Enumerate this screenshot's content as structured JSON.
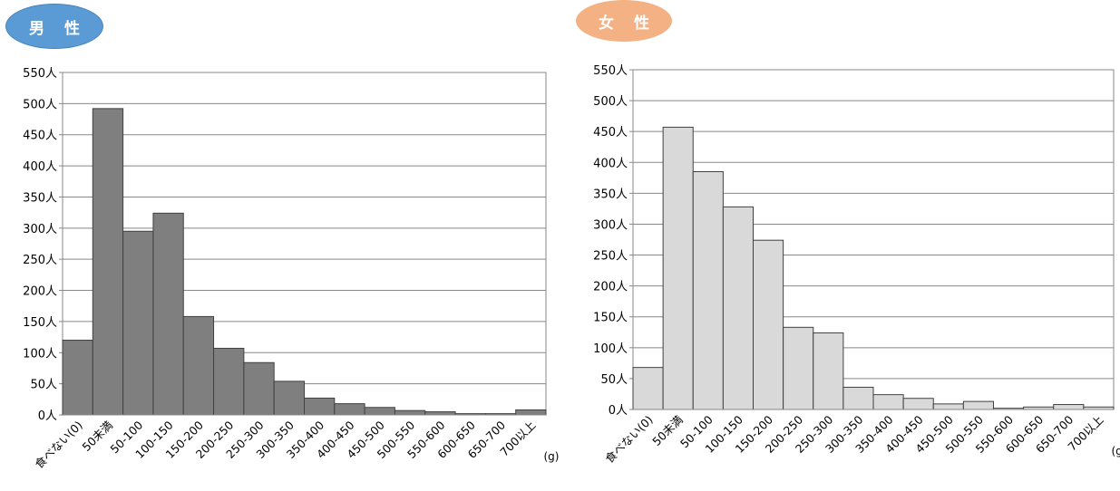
{
  "chart_data": [
    {
      "type": "bar",
      "title": "男 性",
      "categories": [
        "食べない(0)",
        "50未満",
        "50-100",
        "100-150",
        "150-200",
        "200-250",
        "250-300",
        "300-350",
        "350-400",
        "400-450",
        "450-500",
        "500-550",
        "550-600",
        "600-650",
        "650-700",
        "700以上"
      ],
      "values": [
        120,
        492,
        295,
        324,
        158,
        107,
        84,
        54,
        27,
        18,
        12,
        7,
        5,
        2,
        2,
        8
      ],
      "ylim": [
        0,
        550
      ],
      "yticks": [
        0,
        50,
        100,
        150,
        200,
        250,
        300,
        350,
        400,
        450,
        500,
        550
      ],
      "ytick_suffix": "人",
      "xunit": "(g)",
      "bar_color": "#7f7f7f",
      "grid": true
    },
    {
      "type": "bar",
      "title": "女 性",
      "categories": [
        "食べない(0)",
        "50未満",
        "50-100",
        "100-150",
        "150-200",
        "200-250",
        "250-300",
        "300-350",
        "350-400",
        "400-450",
        "450-500",
        "500-550",
        "550-600",
        "600-650",
        "650-700",
        "700以上"
      ],
      "values": [
        68,
        457,
        385,
        328,
        274,
        133,
        124,
        36,
        24,
        18,
        9,
        13,
        2,
        4,
        8,
        4
      ],
      "ylim": [
        0,
        550
      ],
      "yticks": [
        0,
        50,
        100,
        150,
        200,
        250,
        300,
        350,
        400,
        450,
        500,
        550
      ],
      "ytick_suffix": "人",
      "xunit": "(g)",
      "bar_color": "#d9d9d9",
      "grid": true
    }
  ]
}
